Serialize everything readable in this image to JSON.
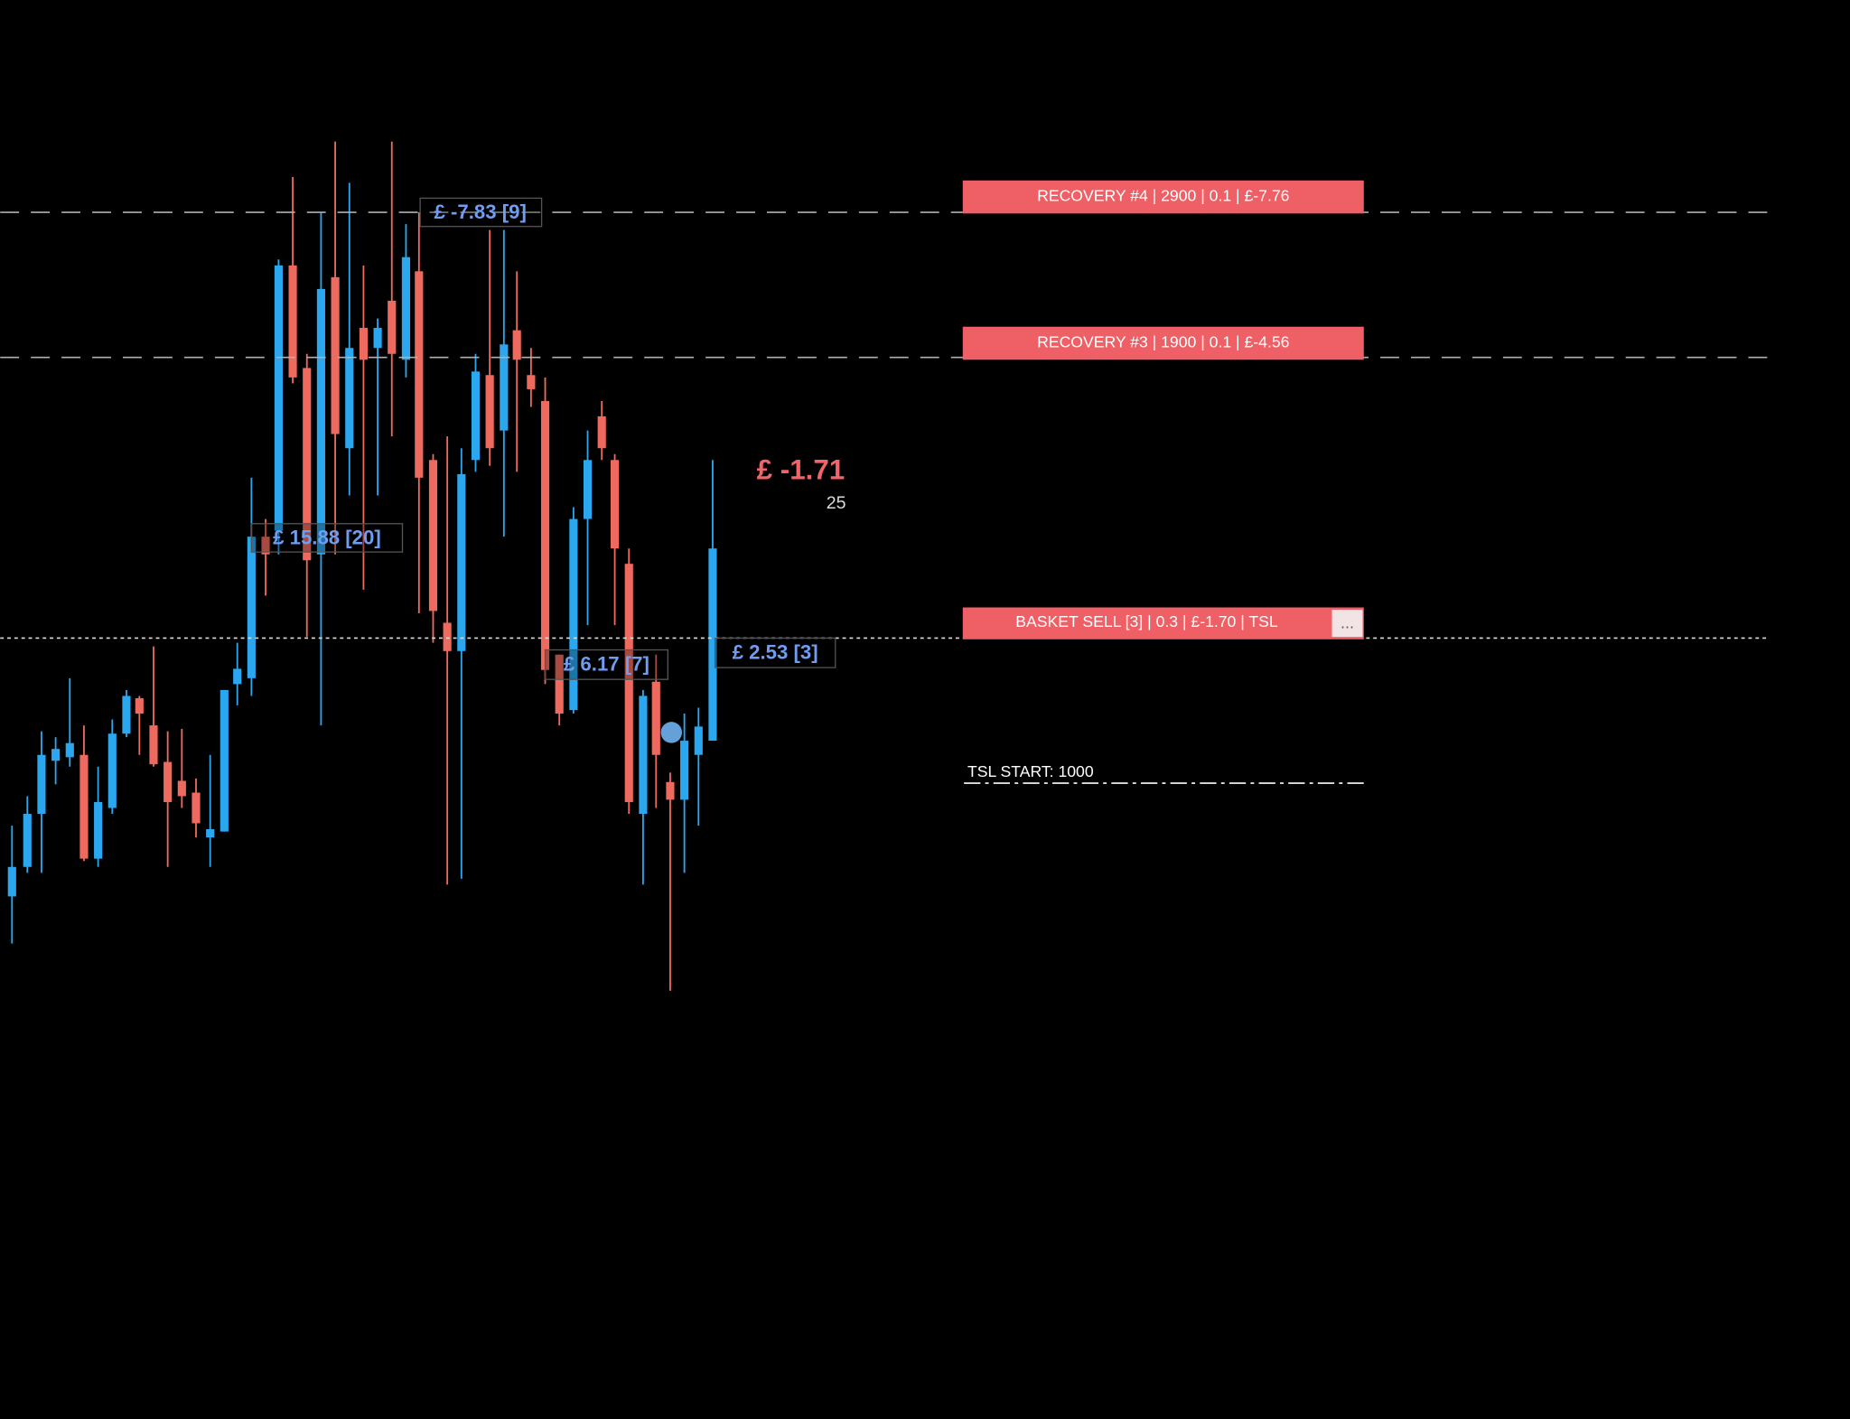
{
  "order_buttons": [
    {
      "label": "RECOVERY #4 | 2900 | 0.1 | £-7.76"
    },
    {
      "label": "RECOVERY #3 | 1900 | 0.1 | £-4.56"
    },
    {
      "label": "BASKET SELL [3] | 0.3 | £-1.70 | TSL",
      "menu": "..."
    }
  ],
  "tsl_start": "TSL START: 1000",
  "basket_profit": {
    "amount": "£ -1.71",
    "count": "25"
  },
  "trade_labels": [
    "£ -7.83 [9]",
    "£ 15.88 [20]",
    "£ 6.17 [7]",
    "£ 2.53 [3]"
  ]
}
